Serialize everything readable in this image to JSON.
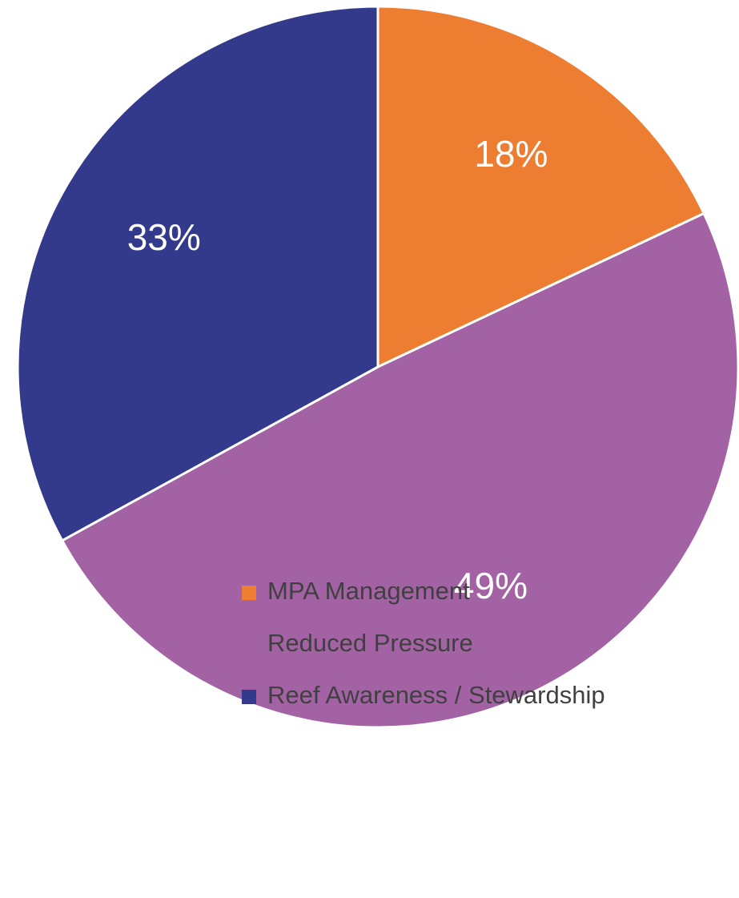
{
  "chart_data": {
    "type": "pie",
    "categories": [
      "MPA Management",
      "Reduced Pressure",
      "Reef Awareness / Stewardship"
    ],
    "values": [
      18,
      49,
      33
    ],
    "value_labels": [
      "18%",
      "49%",
      "33%"
    ],
    "colors": [
      "#ED7D31",
      "#A262A4",
      "#333A8B"
    ],
    "legend": "bottom"
  }
}
